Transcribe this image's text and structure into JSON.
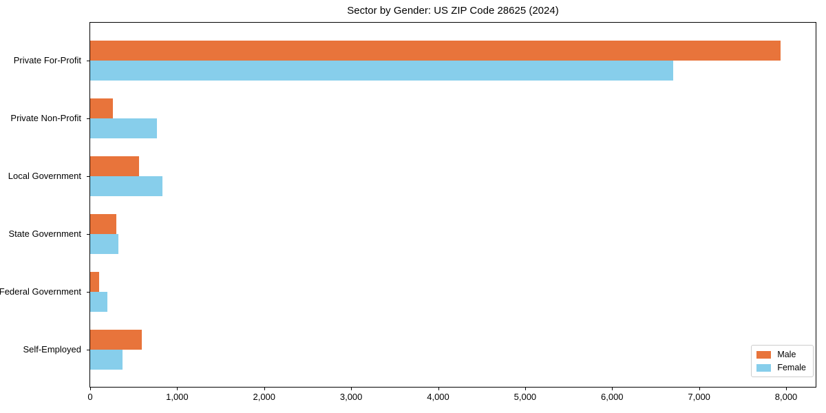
{
  "chart_data": {
    "type": "bar",
    "orientation": "horizontal",
    "title": "Sector by Gender: US ZIP Code 28625 (2024)",
    "categories": [
      "Private For-Profit",
      "Private Non-Profit",
      "Local Government",
      "State Government",
      "Federal Government",
      "Self-Employed"
    ],
    "series": [
      {
        "name": "Male",
        "color": "#e8743b",
        "values": [
          7940,
          260,
          560,
          300,
          105,
          590
        ]
      },
      {
        "name": "Female",
        "color": "#87ceeb",
        "values": [
          6700,
          770,
          830,
          325,
          200,
          375
        ]
      }
    ],
    "xlabel": "",
    "ylabel": "",
    "xlim": [
      0,
      8340
    ],
    "x_ticks": [
      0,
      1000,
      2000,
      3000,
      4000,
      5000,
      6000,
      7000,
      8000
    ],
    "x_tick_labels": [
      "0",
      "1,000",
      "2,000",
      "3,000",
      "4,000",
      "5,000",
      "6,000",
      "7,000",
      "8,000"
    ],
    "grid": false,
    "legend_position": "lower right",
    "axis_color": "#000000",
    "background_color": "#ffffff"
  }
}
